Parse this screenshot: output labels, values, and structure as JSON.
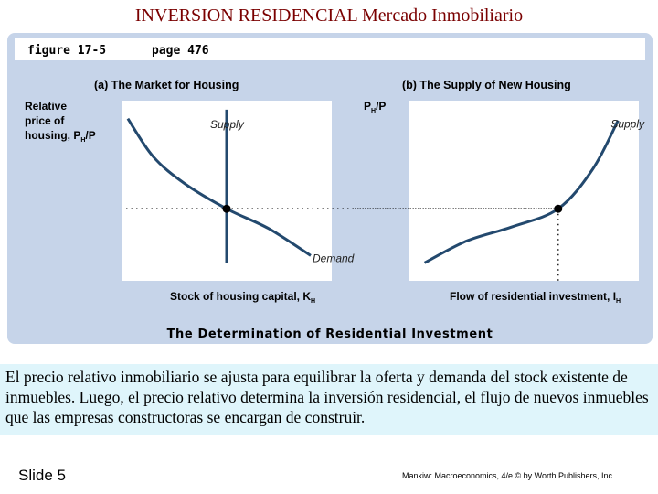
{
  "slide": {
    "title": "INVERSION RESIDENCIAL Mercado Inmobiliario",
    "caption": "El precio relativo inmobiliario se ajusta para equilibrar la oferta y demanda del stock existente de inmuebles. Luego, el precio relativo determina la inversión residencial, el flujo de nuevos inmuebles que las empresas constructoras se encargan de construir.",
    "number": "Slide 5",
    "credit": "Mankiw: Macroeconomics, 4/e © by Worth Publishers, Inc."
  },
  "figure": {
    "label": "figure 17-5",
    "page": "page 476",
    "title": "The Determination of Residential Investment"
  },
  "colors": {
    "panel": "#c6d4e9",
    "title": "#7a0000",
    "curve": "#23496e",
    "label_strip": "#ffffff"
  },
  "chart_data": [
    {
      "type": "line",
      "title": "(a) The Market for Housing",
      "ylabel_lines": [
        "Relative",
        "price of",
        "housing, P"
      ],
      "ylabel_sub": "H",
      "ylabel_tail": "/P",
      "xlabel": "Stock of housing capital, K",
      "xlabel_sub": "H",
      "series": [
        {
          "name": "Supply",
          "x": [
            5,
            5
          ],
          "y": [
            1,
            9.5
          ]
        },
        {
          "name": "Demand",
          "x": [
            0.3,
            1.5,
            3,
            5,
            7,
            9
          ],
          "y": [
            9,
            6.9,
            5.4,
            4,
            2.9,
            1.4
          ]
        }
      ],
      "equilibrium": {
        "x": 5,
        "y": 4
      },
      "xlim": [
        0,
        10
      ],
      "ylim": [
        0,
        10
      ]
    },
    {
      "type": "line",
      "title": "(b) The Supply of New Housing",
      "ylabel": "P",
      "ylabel_sub": "H",
      "ylabel_tail": "/P",
      "xlabel": "Flow of residential investment, I",
      "xlabel_sub": "H",
      "series": [
        {
          "name": "Supply",
          "x": [
            0.7,
            2.5,
            4.5,
            6.5,
            8,
            9.1
          ],
          "y": [
            1,
            2.2,
            3,
            4,
            6.2,
            8.9
          ]
        }
      ],
      "equilibrium": {
        "x": 6.5,
        "y": 4
      },
      "xlim": [
        0,
        10
      ],
      "ylim": [
        0,
        10
      ]
    }
  ]
}
